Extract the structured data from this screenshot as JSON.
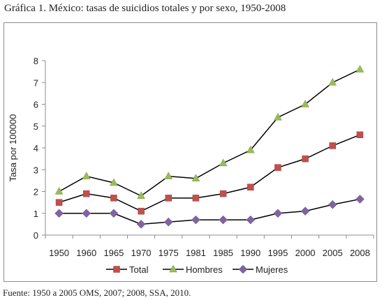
{
  "title": "Gráfica 1. México: tasas de suicidios totales y por sexo, 1950-2008",
  "source": "Fuente: 1950 a 2005 OMS, 2007; 2008, SSA, 2010.",
  "chart_data": {
    "type": "line",
    "ylabel": "Tasa por 100000",
    "xlabel": "",
    "ylim": [
      0,
      8
    ],
    "yticks": [
      "0",
      "1",
      "2",
      "3",
      "4",
      "5",
      "6",
      "7",
      "8"
    ],
    "categories": [
      "1950",
      "1960",
      "1965",
      "1970",
      "1975",
      "1981",
      "1985",
      "1990",
      "1995",
      "2000",
      "2005",
      "2008"
    ],
    "grid": false,
    "legend_position": "bottom",
    "series": [
      {
        "name": "Total",
        "color": "#c0504d",
        "marker": "square",
        "values": [
          1.5,
          1.9,
          1.7,
          1.1,
          1.7,
          1.7,
          1.9,
          2.2,
          3.1,
          3.5,
          4.1,
          4.6
        ]
      },
      {
        "name": "Hombres",
        "color": "#9bbb59",
        "marker": "triangle",
        "values": [
          2.0,
          2.7,
          2.4,
          1.8,
          2.7,
          2.6,
          3.3,
          3.9,
          5.4,
          6.0,
          7.0,
          7.6
        ]
      },
      {
        "name": "Mujeres",
        "color": "#8064a2",
        "marker": "diamond",
        "values": [
          1.0,
          1.0,
          1.0,
          0.5,
          0.6,
          0.7,
          0.7,
          0.7,
          1.0,
          1.1,
          1.4,
          1.65
        ]
      }
    ]
  }
}
